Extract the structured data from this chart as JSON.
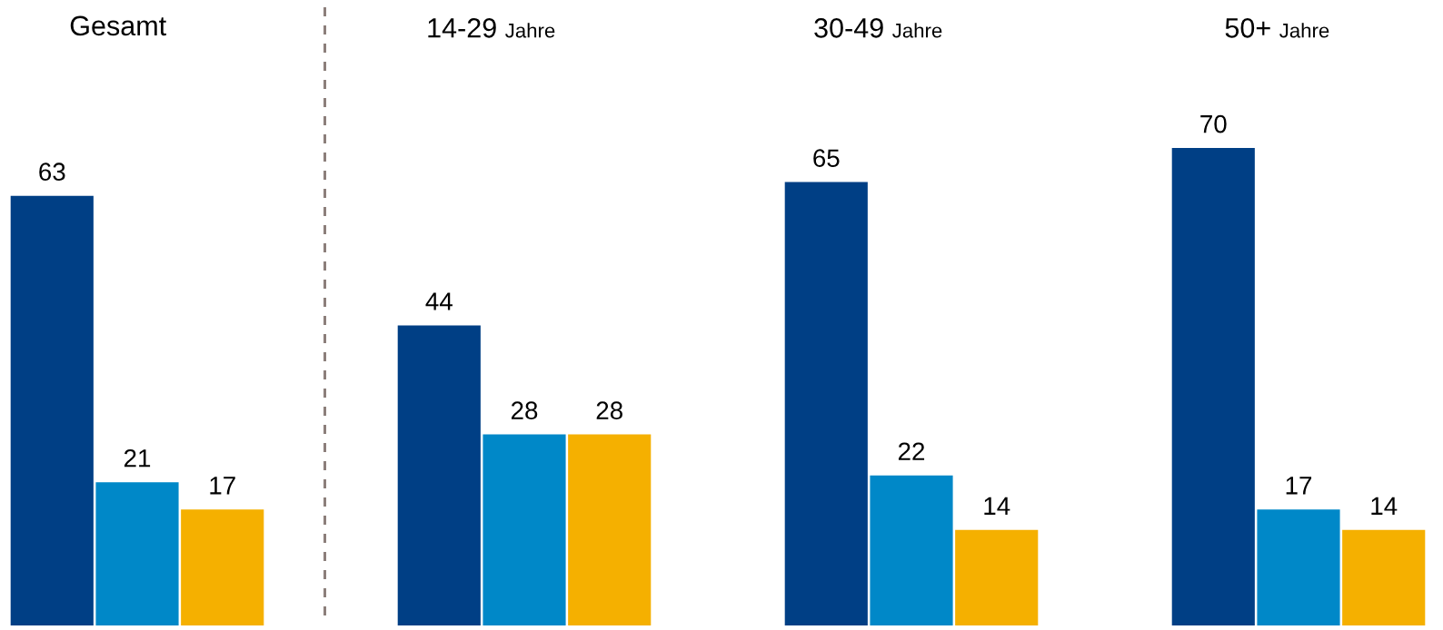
{
  "chart_data": {
    "type": "bar",
    "categories": [
      "Gesamt",
      "14-29 Jahre",
      "30-49 Jahre",
      "50+ Jahre"
    ],
    "series": [
      {
        "color": "#003f85",
        "values": [
          63,
          44,
          65,
          70
        ]
      },
      {
        "color": "#0088c8",
        "values": [
          21,
          28,
          22,
          17
        ]
      },
      {
        "color": "#f5b000",
        "values": [
          17,
          28,
          14,
          14
        ]
      }
    ],
    "data_labels": true
  }
}
